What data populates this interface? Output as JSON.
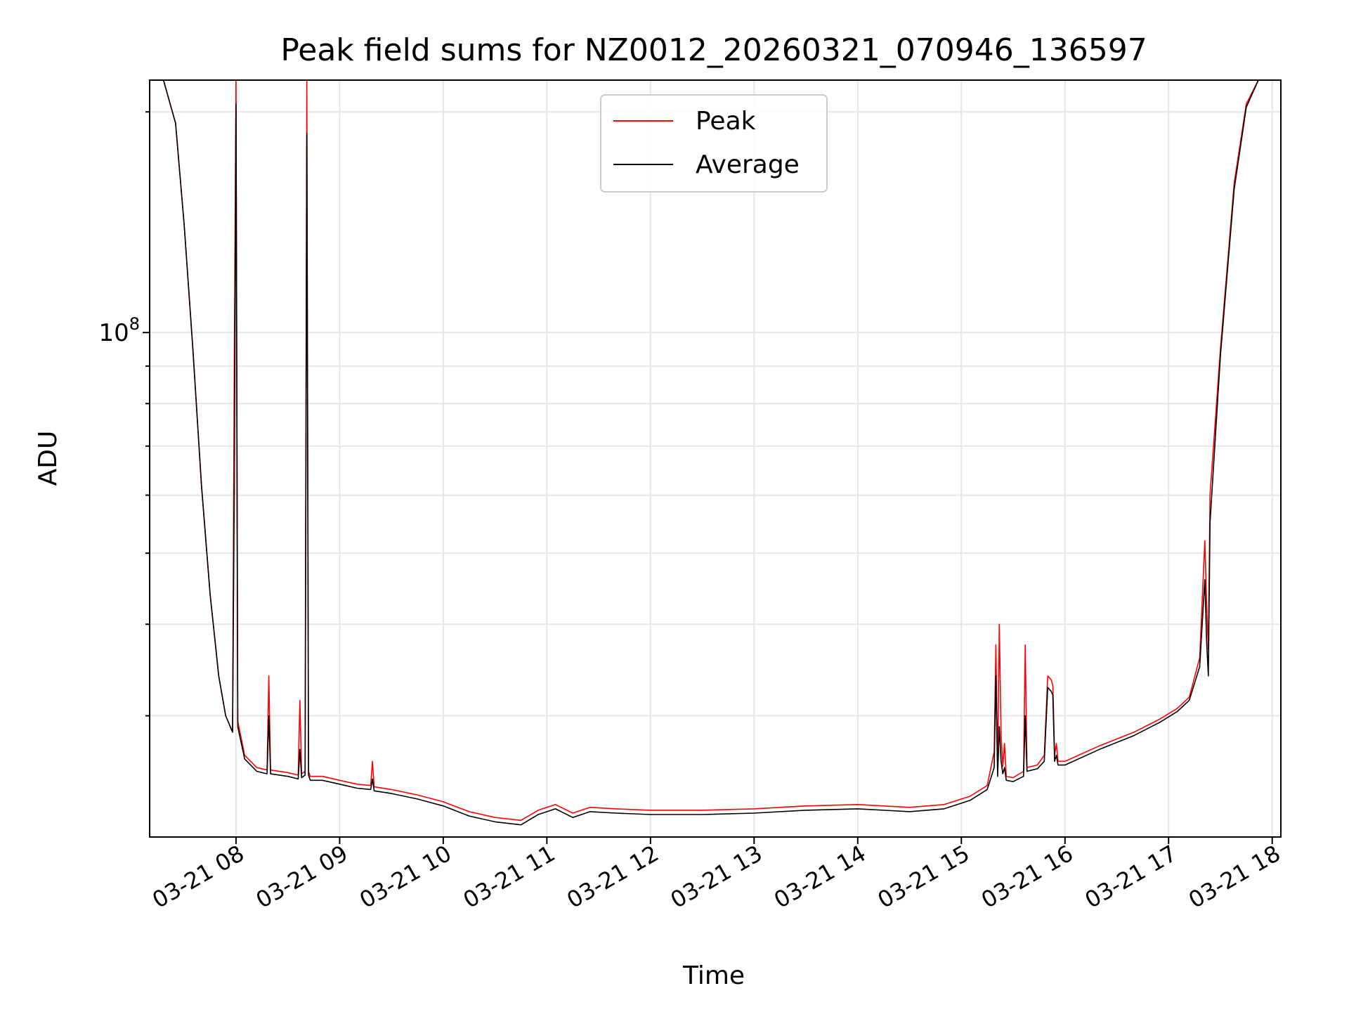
{
  "chart_data": {
    "type": "line",
    "title": "Peak field sums for NZ0012_20260321_070946_136597",
    "xlabel": "Time",
    "ylabel": "ADU",
    "yscale": "log",
    "grid": true,
    "legend_placement": "top-center",
    "xlim": [
      "2026-03-21 07:10",
      "2026-03-21 18:05"
    ],
    "ylim": [
      20500000,
      221000000
    ],
    "x_ticks": [
      {
        "value": "2026-03-21 08:00",
        "label": "03-21 08"
      },
      {
        "value": "2026-03-21 09:00",
        "label": "03-21 09"
      },
      {
        "value": "2026-03-21 10:00",
        "label": "03-21 10"
      },
      {
        "value": "2026-03-21 11:00",
        "label": "03-21 11"
      },
      {
        "value": "2026-03-21 12:00",
        "label": "03-21 12"
      },
      {
        "value": "2026-03-21 13:00",
        "label": "03-21 13"
      },
      {
        "value": "2026-03-21 14:00",
        "label": "03-21 14"
      },
      {
        "value": "2026-03-21 15:00",
        "label": "03-21 15"
      },
      {
        "value": "2026-03-21 16:00",
        "label": "03-21 16"
      },
      {
        "value": "2026-03-21 17:00",
        "label": "03-21 17"
      },
      {
        "value": "2026-03-21 18:00",
        "label": "03-21 18"
      }
    ],
    "y_major_tick": {
      "value": 100000000,
      "base": "10",
      "exponent": "8"
    },
    "series": [
      {
        "name": "Peak",
        "color": "#ff0000",
        "x": [
          "2026-03-21 07:10",
          "2026-03-21 07:18",
          "2026-03-21 07:25",
          "2026-03-21 07:30",
          "2026-03-21 07:35",
          "2026-03-21 07:40",
          "2026-03-21 07:45",
          "2026-03-21 07:50",
          "2026-03-21 07:54",
          "2026-03-21 07:58",
          "2026-03-21 07:59",
          "2026-03-21 08:00",
          "2026-03-21 08:01",
          "2026-03-21 08:05",
          "2026-03-21 08:12",
          "2026-03-21 08:18",
          "2026-03-21 08:19",
          "2026-03-21 08:20",
          "2026-03-21 08:30",
          "2026-03-21 08:36",
          "2026-03-21 08:37",
          "2026-03-21 08:38",
          "2026-03-21 08:40",
          "2026-03-21 08:41",
          "2026-03-21 08:42",
          "2026-03-21 08:43",
          "2026-03-21 08:50",
          "2026-03-21 09:00",
          "2026-03-21 09:10",
          "2026-03-21 09:18",
          "2026-03-21 09:19",
          "2026-03-21 09:20",
          "2026-03-21 09:30",
          "2026-03-21 09:45",
          "2026-03-21 10:00",
          "2026-03-21 10:15",
          "2026-03-21 10:30",
          "2026-03-21 10:45",
          "2026-03-21 10:55",
          "2026-03-21 11:05",
          "2026-03-21 11:15",
          "2026-03-21 11:25",
          "2026-03-21 11:40",
          "2026-03-21 12:00",
          "2026-03-21 12:30",
          "2026-03-21 13:00",
          "2026-03-21 13:30",
          "2026-03-21 14:00",
          "2026-03-21 14:30",
          "2026-03-21 14:50",
          "2026-03-21 15:05",
          "2026-03-21 15:15",
          "2026-03-21 15:19",
          "2026-03-21 15:20",
          "2026-03-21 15:21",
          "2026-03-21 15:22",
          "2026-03-21 15:23",
          "2026-03-21 15:24",
          "2026-03-21 15:25",
          "2026-03-21 15:26",
          "2026-03-21 15:30",
          "2026-03-21 15:36",
          "2026-03-21 15:37",
          "2026-03-21 15:38",
          "2026-03-21 15:44",
          "2026-03-21 15:48",
          "2026-03-21 15:50",
          "2026-03-21 15:52",
          "2026-03-21 15:53",
          "2026-03-21 15:54",
          "2026-03-21 15:55",
          "2026-03-21 15:56",
          "2026-03-21 16:00",
          "2026-03-21 16:20",
          "2026-03-21 16:40",
          "2026-03-21 16:55",
          "2026-03-21 17:05",
          "2026-03-21 17:12",
          "2026-03-21 17:18",
          "2026-03-21 17:21",
          "2026-03-21 17:22",
          "2026-03-21 17:23",
          "2026-03-21 17:24",
          "2026-03-21 17:30",
          "2026-03-21 17:38",
          "2026-03-21 17:45",
          "2026-03-21 17:52",
          "2026-03-21 18:00",
          "2026-03-21 18:05"
        ],
        "values": [
          221000000,
          221000000,
          193000000,
          140000000,
          95000000,
          62000000,
          44000000,
          34000000,
          30000000,
          28500000,
          90000000,
          221000000,
          29500000,
          26500000,
          25500000,
          25300000,
          34000000,
          25300000,
          25100000,
          24900000,
          31500000,
          25000000,
          25200000,
          221000000,
          25200000,
          24800000,
          24800000,
          24500000,
          24200000,
          24100000,
          26000000,
          24000000,
          23800000,
          23400000,
          22900000,
          22200000,
          21800000,
          21600000,
          22300000,
          22700000,
          22100000,
          22500000,
          22400000,
          22300000,
          22300000,
          22400000,
          22600000,
          22700000,
          22500000,
          22700000,
          23300000,
          24100000,
          26800000,
          37500000,
          25600000,
          40000000,
          28300000,
          25600000,
          27500000,
          24800000,
          24700000,
          25200000,
          37500000,
          25500000,
          25700000,
          26500000,
          34000000,
          33600000,
          33000000,
          26500000,
          27500000,
          26000000,
          26000000,
          27300000,
          28500000,
          29700000,
          30700000,
          31800000,
          36000000,
          52000000,
          43000000,
          37000000,
          60000000,
          95000000,
          160000000,
          205000000,
          221000000,
          221000000,
          221000000
        ]
      },
      {
        "name": "Average",
        "color": "#000000",
        "x": [
          "2026-03-21 07:10",
          "2026-03-21 07:18",
          "2026-03-21 07:25",
          "2026-03-21 07:30",
          "2026-03-21 07:35",
          "2026-03-21 07:40",
          "2026-03-21 07:45",
          "2026-03-21 07:50",
          "2026-03-21 07:54",
          "2026-03-21 07:58",
          "2026-03-21 07:59",
          "2026-03-21 08:00",
          "2026-03-21 08:01",
          "2026-03-21 08:05",
          "2026-03-21 08:12",
          "2026-03-21 08:18",
          "2026-03-21 08:19",
          "2026-03-21 08:20",
          "2026-03-21 08:30",
          "2026-03-21 08:36",
          "2026-03-21 08:37",
          "2026-03-21 08:38",
          "2026-03-21 08:40",
          "2026-03-21 08:41",
          "2026-03-21 08:42",
          "2026-03-21 08:43",
          "2026-03-21 08:50",
          "2026-03-21 09:00",
          "2026-03-21 09:10",
          "2026-03-21 09:18",
          "2026-03-21 09:19",
          "2026-03-21 09:20",
          "2026-03-21 09:30",
          "2026-03-21 09:45",
          "2026-03-21 10:00",
          "2026-03-21 10:15",
          "2026-03-21 10:30",
          "2026-03-21 10:45",
          "2026-03-21 10:55",
          "2026-03-21 11:05",
          "2026-03-21 11:15",
          "2026-03-21 11:25",
          "2026-03-21 11:40",
          "2026-03-21 12:00",
          "2026-03-21 12:30",
          "2026-03-21 13:00",
          "2026-03-21 13:30",
          "2026-03-21 14:00",
          "2026-03-21 14:30",
          "2026-03-21 14:50",
          "2026-03-21 15:05",
          "2026-03-21 15:15",
          "2026-03-21 15:19",
          "2026-03-21 15:20",
          "2026-03-21 15:21",
          "2026-03-21 15:22",
          "2026-03-21 15:23",
          "2026-03-21 15:24",
          "2026-03-21 15:25",
          "2026-03-21 15:26",
          "2026-03-21 15:30",
          "2026-03-21 15:36",
          "2026-03-21 15:37",
          "2026-03-21 15:38",
          "2026-03-21 15:44",
          "2026-03-21 15:48",
          "2026-03-21 15:50",
          "2026-03-21 15:52",
          "2026-03-21 15:53",
          "2026-03-21 15:54",
          "2026-03-21 15:55",
          "2026-03-21 15:56",
          "2026-03-21 16:00",
          "2026-03-21 16:20",
          "2026-03-21 16:40",
          "2026-03-21 16:55",
          "2026-03-21 17:05",
          "2026-03-21 17:12",
          "2026-03-21 17:18",
          "2026-03-21 17:21",
          "2026-03-21 17:22",
          "2026-03-21 17:23",
          "2026-03-21 17:24",
          "2026-03-21 17:30",
          "2026-03-21 17:38",
          "2026-03-21 17:45",
          "2026-03-21 17:52",
          "2026-03-21 18:00",
          "2026-03-21 18:05"
        ],
        "values": [
          221000000,
          221000000,
          193000000,
          140000000,
          95000000,
          62000000,
          44000000,
          34000000,
          30000000,
          28500000,
          60000000,
          205000000,
          29000000,
          26200000,
          25200000,
          25000000,
          30000000,
          25000000,
          24800000,
          24600000,
          27000000,
          24700000,
          24900000,
          187000000,
          24900000,
          24500000,
          24500000,
          24200000,
          23900000,
          23800000,
          24600000,
          23700000,
          23500000,
          23100000,
          22600000,
          21900000,
          21500000,
          21300000,
          22000000,
          22400000,
          21800000,
          22200000,
          22100000,
          22000000,
          22000000,
          22100000,
          22300000,
          22400000,
          22200000,
          22400000,
          23000000,
          23800000,
          25500000,
          34000000,
          24800000,
          29000000,
          26000000,
          25000000,
          25500000,
          24500000,
          24400000,
          24800000,
          30000000,
          25200000,
          25400000,
          26000000,
          32800000,
          32400000,
          32000000,
          26000000,
          26500000,
          25700000,
          25700000,
          27000000,
          28200000,
          29400000,
          30400000,
          31500000,
          35000000,
          46000000,
          38000000,
          34000000,
          55000000,
          93000000,
          157000000,
          203000000,
          221000000,
          221000000,
          221000000
        ]
      }
    ]
  }
}
